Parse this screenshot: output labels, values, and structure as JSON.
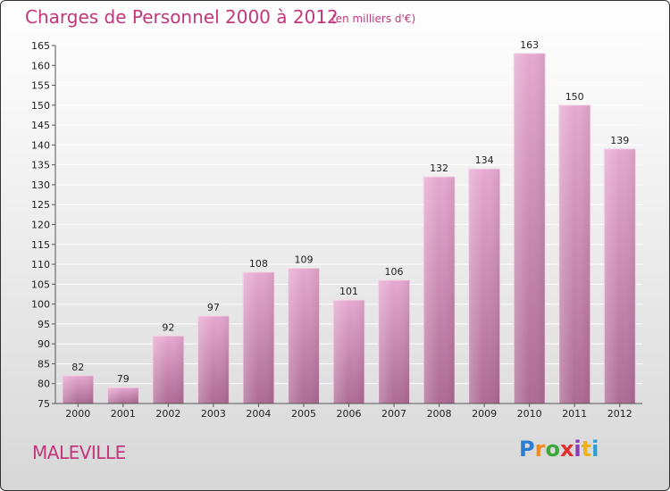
{
  "header": {
    "title": "Charges de Personnel 2000 à 2012",
    "subtitle": "(en milliers d'€)"
  },
  "footer": {
    "city": "MALEVILLE",
    "logo_letters": [
      "P",
      "r",
      "o",
      "x",
      "i",
      "t",
      "i"
    ],
    "logo_colors": [
      "#2a7fd4",
      "#f08a1c",
      "#3aa83a",
      "#e03030",
      "#8a3ab8",
      "#f0b01c",
      "#2a9fd4"
    ]
  },
  "chart_data": {
    "type": "bar",
    "title": "Charges de Personnel 2000 à 2012",
    "subtitle": "(en milliers d'€)",
    "categories": [
      "2000",
      "2001",
      "2002",
      "2003",
      "2004",
      "2005",
      "2006",
      "2007",
      "2008",
      "2009",
      "2010",
      "2011",
      "2012"
    ],
    "values": [
      82,
      79,
      92,
      97,
      108,
      109,
      101,
      106,
      132,
      134,
      163,
      150,
      139
    ],
    "ylim": [
      75,
      165
    ],
    "yticks": [
      75,
      80,
      85,
      90,
      95,
      100,
      105,
      110,
      115,
      120,
      125,
      130,
      135,
      140,
      145,
      150,
      155,
      160,
      165
    ],
    "bar_color": "#d98fbc",
    "grid": true
  }
}
